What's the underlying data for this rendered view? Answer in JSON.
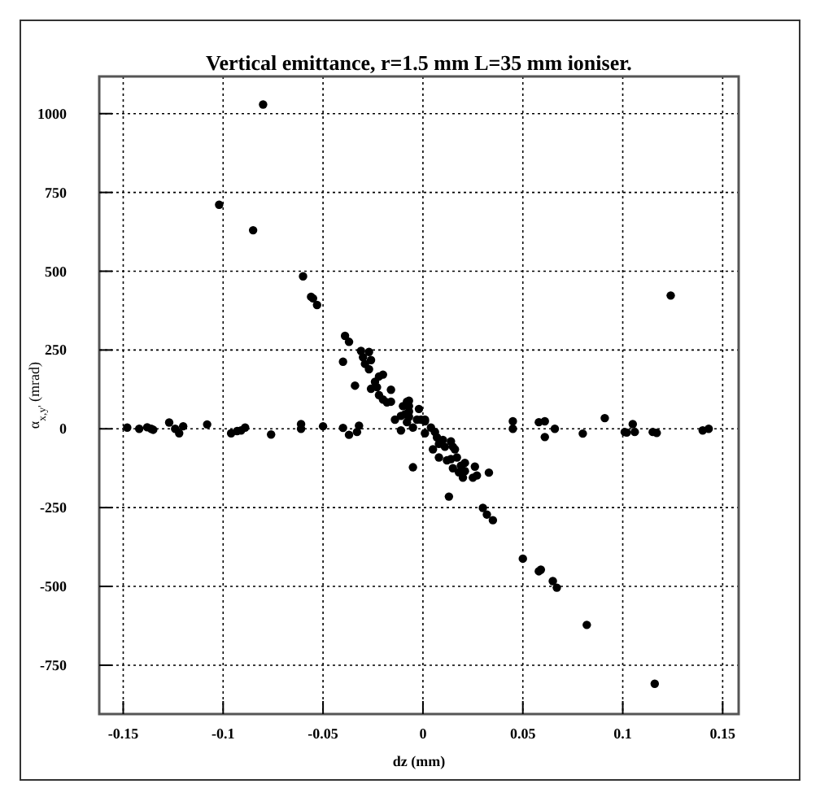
{
  "chart_data": {
    "type": "scatter",
    "title": "Vertical emittance, r=1.5 mm L=35 mm ioniser.",
    "xlabel": "dz (mm)",
    "ylabel": "α$_{x,y'}$ (mrad)",
    "xlim": [
      -0.162,
      0.158
    ],
    "ylim": [
      -905,
      1118
    ],
    "xticks": [
      -0.15,
      -0.1,
      -0.05,
      0,
      0.05,
      0.1,
      0.15
    ],
    "yticks": [
      -750,
      -500,
      -250,
      0,
      250,
      500,
      750,
      1000
    ],
    "grid": true,
    "marker": "circle",
    "series": [
      {
        "color": "#000000",
        "x": [
          -0.148,
          -0.142,
          -0.138,
          -0.136,
          -0.135,
          -0.127,
          -0.124,
          -0.122,
          -0.12,
          -0.108,
          -0.096,
          -0.093,
          -0.091,
          -0.089,
          -0.076,
          -0.061,
          -0.061,
          -0.05,
          -0.04,
          -0.037,
          -0.033,
          -0.032,
          -0.06,
          -0.056,
          -0.055,
          -0.053,
          -0.04,
          -0.039,
          -0.037,
          -0.034,
          -0.031,
          -0.03,
          -0.029,
          -0.027,
          -0.026,
          -0.027,
          -0.024,
          -0.023,
          -0.026,
          -0.022,
          -0.02,
          -0.022,
          -0.02,
          -0.018,
          -0.016,
          -0.016,
          -0.014,
          -0.011,
          -0.01,
          -0.008,
          -0.007,
          -0.008,
          -0.007,
          -0.009,
          -0.005,
          -0.002,
          -0.001,
          -0.011,
          -0.005,
          0.001,
          -0.007,
          -0.007,
          -0.003,
          0.001,
          0.004,
          0.006,
          0.007,
          0.001,
          0.005,
          0.008,
          0.01,
          0.011,
          0.014,
          0.015,
          0.016,
          0.008,
          0.012,
          0.014,
          0.015,
          0.017,
          0.018,
          0.019,
          0.02,
          0.021,
          0.021,
          0.025,
          0.026,
          0.027,
          0.033,
          0.013,
          0.03,
          0.032,
          0.035,
          0.05,
          0.058,
          0.059,
          0.065,
          0.067,
          0.082,
          0.116,
          0.124,
          0.045,
          0.045,
          0.058,
          0.061,
          0.061,
          0.066,
          0.08,
          0.091,
          0.101,
          0.102,
          0.105,
          0.106,
          0.115,
          0.117,
          0.14,
          0.143,
          -0.08,
          -0.102,
          -0.085
        ],
        "values": [
          4,
          0,
          5,
          0,
          -3,
          20,
          0,
          -14,
          8,
          14,
          -14,
          -7,
          -5,
          4,
          -18,
          15,
          0,
          8,
          3,
          -19,
          -10,
          10,
          484,
          419,
          414,
          393,
          213,
          295,
          276,
          137,
          247,
          227,
          206,
          189,
          218,
          244,
          149,
          132,
          127,
          166,
          172,
          107,
          93,
          84,
          86,
          124,
          29,
          41,
          72,
          86,
          72,
          21,
          38,
          46,
          4,
          63,
          29,
          -5,
          -122,
          29,
          89,
          55,
          29,
          24,
          4,
          -10,
          -27,
          -14,
          -65,
          -48,
          -35,
          -57,
          -40,
          -57,
          -65,
          -91,
          -100,
          -96,
          -125,
          -91,
          -138,
          -117,
          -155,
          -134,
          -108,
          -155,
          -120,
          -148,
          -139,
          -215,
          -251,
          -272,
          -290,
          -412,
          -452,
          -447,
          -483,
          -504,
          -622,
          -809,
          423,
          0,
          24,
          21,
          24,
          -26,
          0,
          -15,
          34,
          -10,
          -12,
          15,
          -10,
          -10,
          -13,
          -5,
          0,
          1029,
          711,
          630
        ]
      }
    ]
  }
}
